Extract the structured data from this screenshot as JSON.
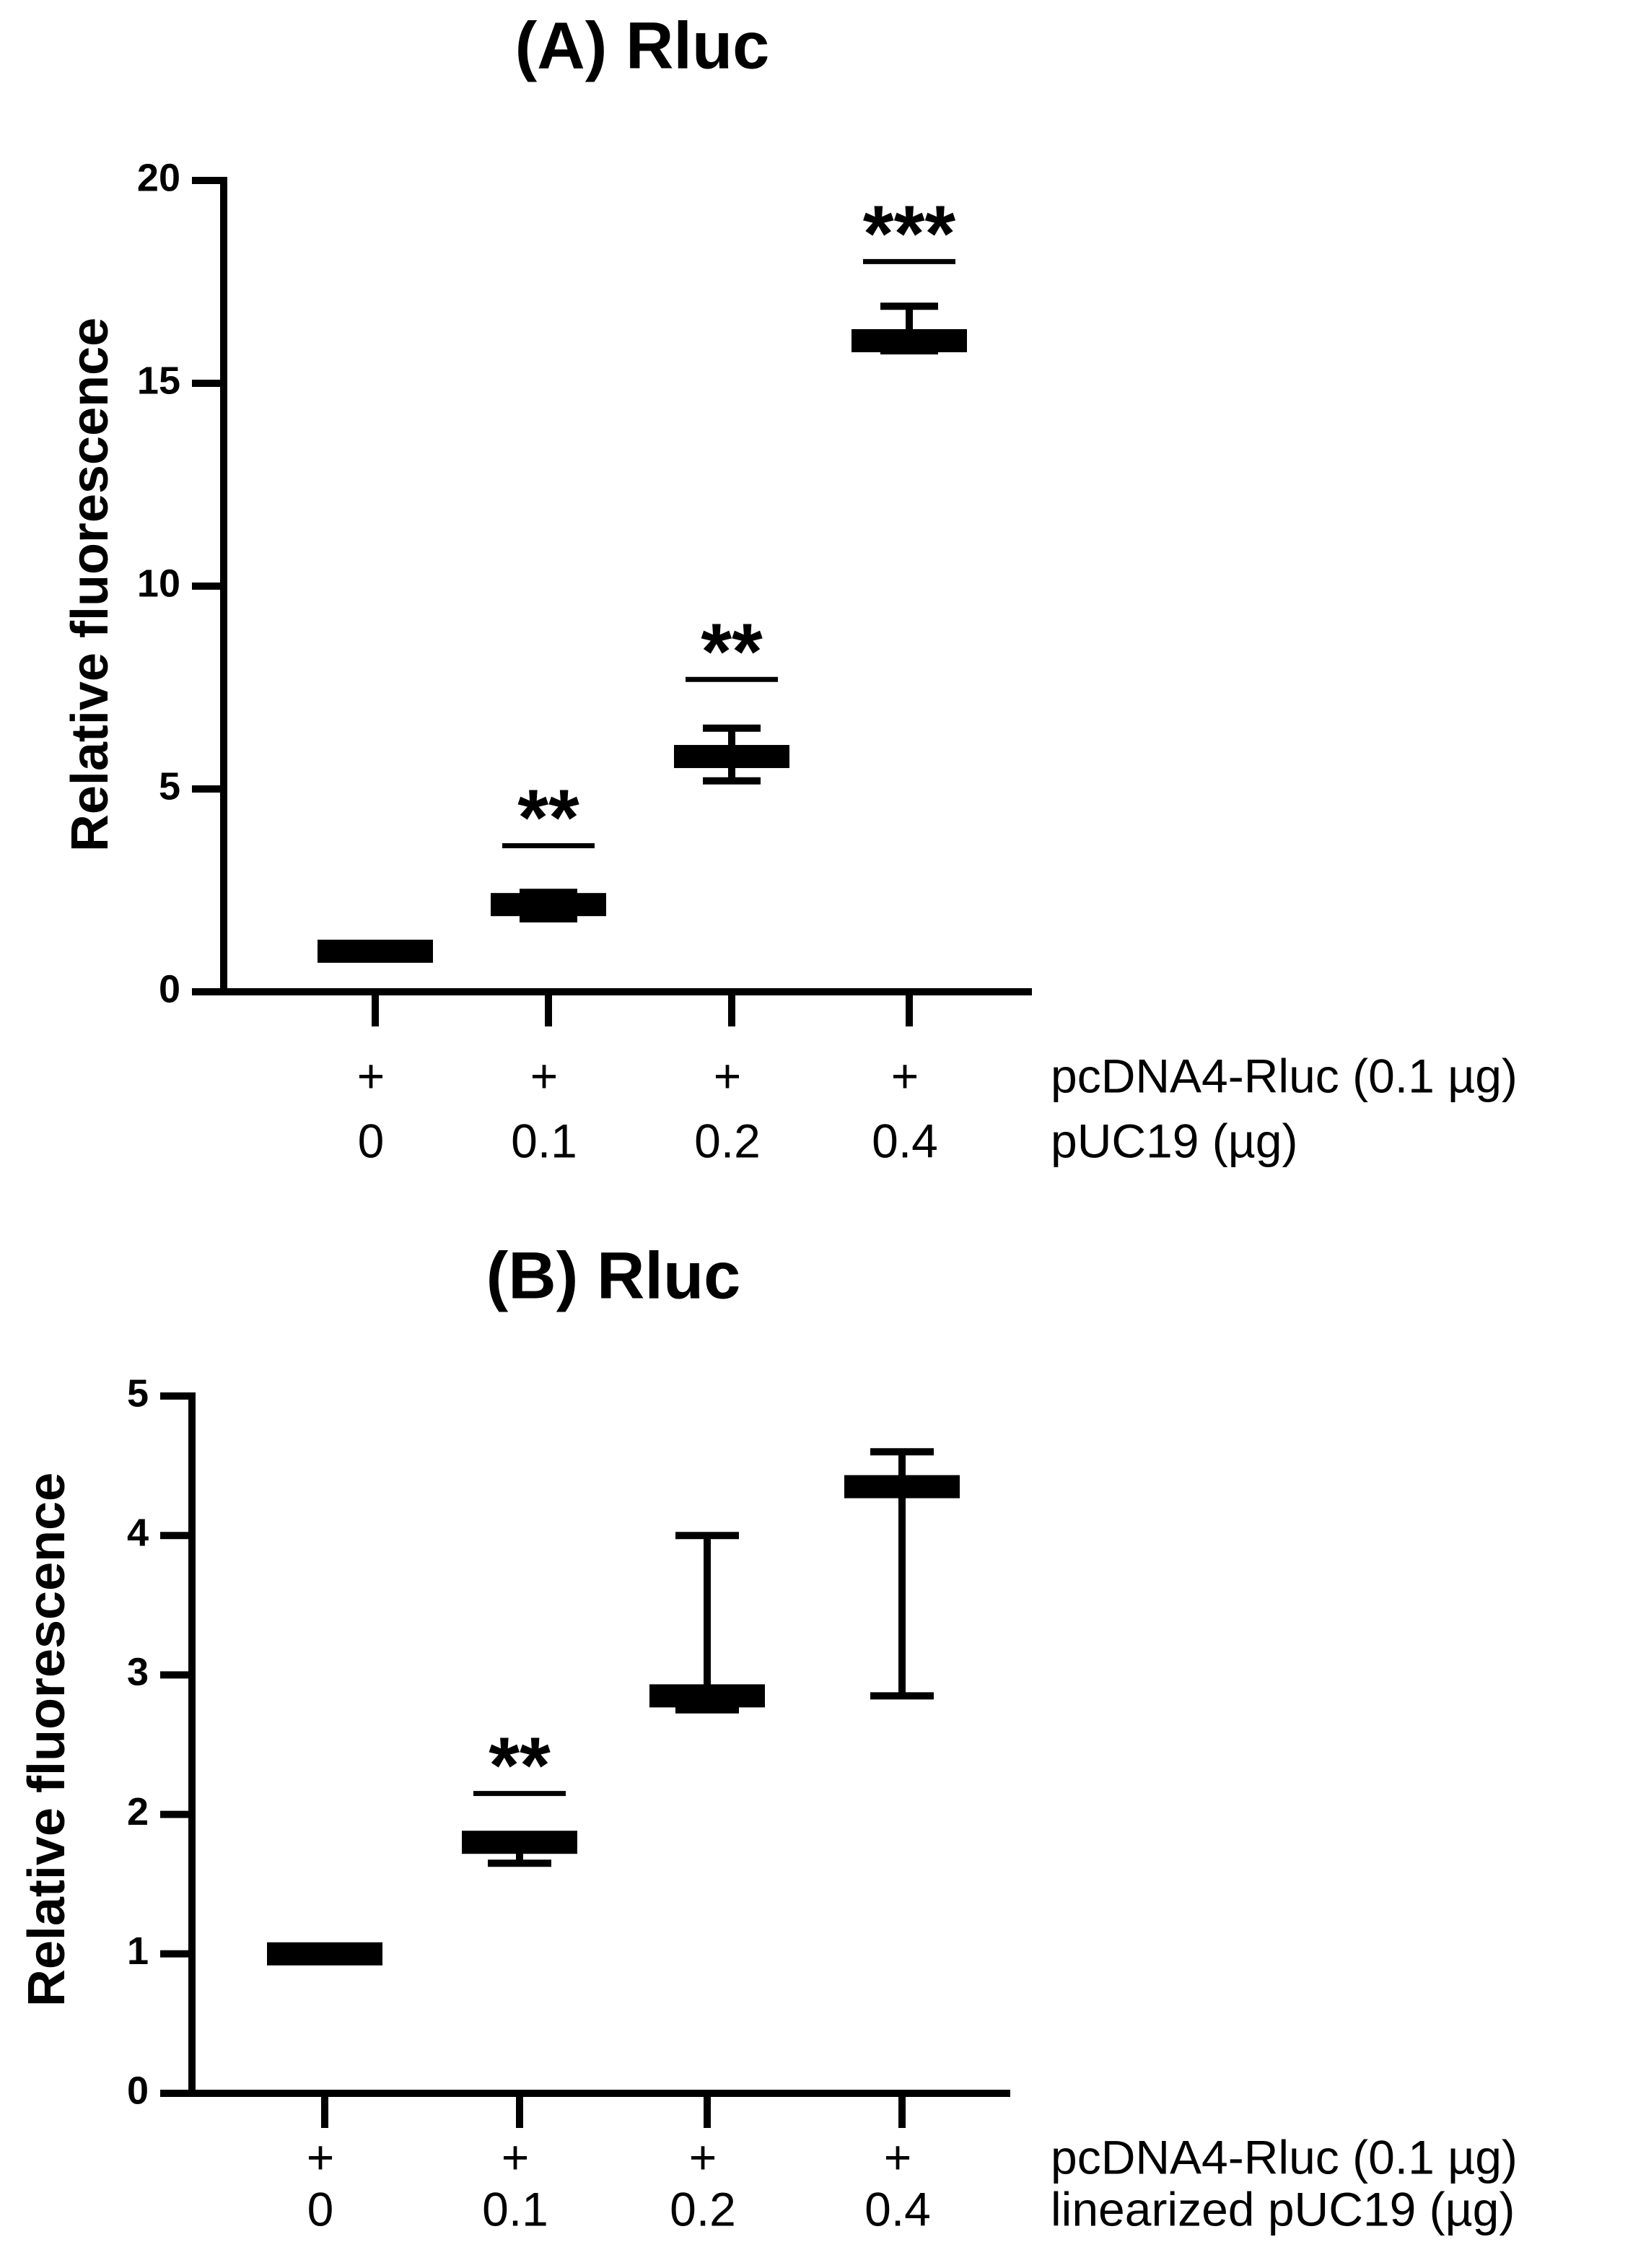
{
  "chart_data": [
    {
      "type": "errorbar",
      "title": "(A) Rluc",
      "y_label": "Relative fluorescence",
      "categories": [
        "0",
        "0.1",
        "0.2",
        "0.4"
      ],
      "plus_marks": [
        "+",
        "+",
        "+",
        "+"
      ],
      "row_labels": [
        "pcDNA4-Rluc (0.1 µg)",
        "pUC19 (µg)"
      ],
      "values": [
        1.0,
        2.15,
        5.8,
        16.05
      ],
      "upper": [
        1.1,
        2.45,
        6.5,
        16.9
      ],
      "lower": [
        0.9,
        1.8,
        5.2,
        15.8
      ],
      "annotations": [
        null,
        "**",
        "**",
        "***"
      ],
      "annotation_y": [
        null,
        3.6,
        7.7,
        18.0
      ],
      "color": "#000000",
      "ylim": [
        0,
        20
      ],
      "yticks": [
        0,
        5,
        10,
        15,
        20
      ]
    },
    {
      "type": "errorbar",
      "title": "(B) Rluc",
      "y_label": "Relative fluorescence",
      "categories": [
        "0",
        "0.1",
        "0.2",
        "0.4"
      ],
      "plus_marks": [
        "+",
        "+",
        "+",
        "+"
      ],
      "row_labels": [
        "pcDNA4-Rluc (0.1 µg)",
        "linearized pUC19 (µg)"
      ],
      "values": [
        1.0,
        1.8,
        2.85,
        4.35
      ],
      "upper": [
        1.05,
        1.85,
        4.0,
        4.6
      ],
      "lower": [
        0.95,
        1.65,
        2.75,
        2.85
      ],
      "annotations": [
        null,
        "**",
        null,
        null
      ],
      "annotation_y": [
        null,
        2.15,
        null,
        null
      ],
      "color": "#000000",
      "ylim": [
        0,
        5
      ],
      "yticks": [
        0,
        1,
        2,
        3,
        4,
        5
      ]
    }
  ]
}
